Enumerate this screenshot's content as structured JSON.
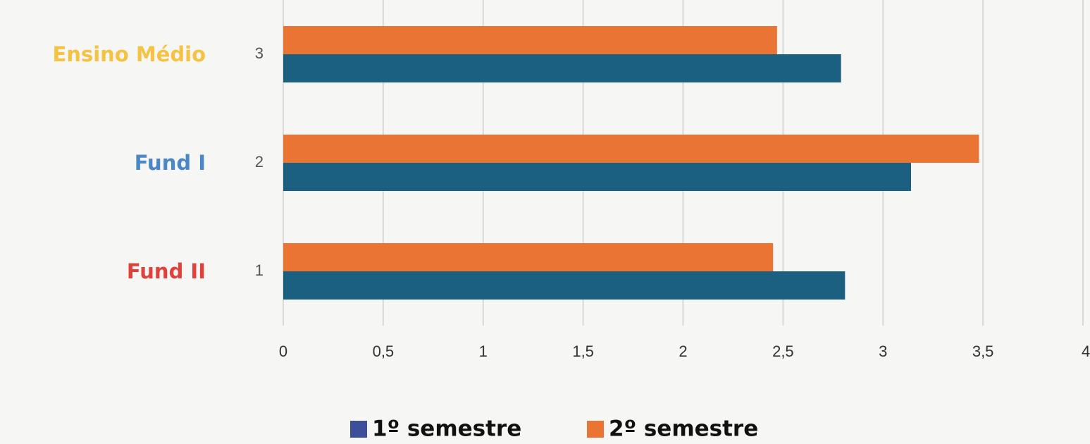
{
  "chart_data": {
    "type": "hbar",
    "categories": [
      "1",
      "2",
      "3"
    ],
    "group_labels": [
      "Fund II",
      "Fund I",
      "Ensino Médio"
    ],
    "group_label_colors": [
      "#e0413a",
      "#4a86c8",
      "#f5c242"
    ],
    "series": [
      {
        "name": "1º semestre",
        "color": "#1b6080",
        "legend_color": "#3b4f9a",
        "values": [
          2.81,
          3.14,
          2.79
        ]
      },
      {
        "name": "2º semestre",
        "color": "#e97434",
        "values": [
          2.45,
          3.48,
          2.47
        ]
      }
    ],
    "xlim": [
      0,
      4
    ],
    "xticks": [
      0,
      {
        "value": 0.5,
        "label": "0,5"
      },
      1,
      {
        "value": 1.5,
        "label": "1,5"
      },
      2,
      {
        "value": 2.5,
        "label": "2,5"
      },
      3,
      {
        "value": 3.5,
        "label": "3,5"
      },
      4
    ],
    "grid": true
  }
}
